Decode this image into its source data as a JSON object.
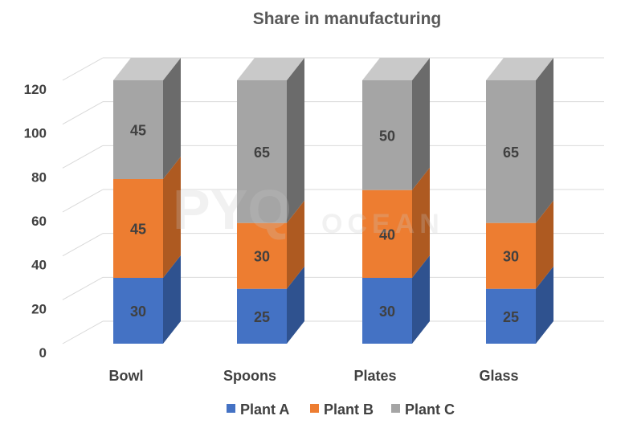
{
  "chart_data": {
    "type": "bar",
    "stacked": true,
    "three_d": true,
    "title": "Share in manufacturing",
    "categories": [
      "Bowl",
      "Spoons",
      "Plates",
      "Glass"
    ],
    "series": [
      {
        "name": "Plant A",
        "values": [
          30,
          25,
          30,
          25
        ],
        "color": "#4472c4",
        "side_color": "#2f528f"
      },
      {
        "name": "Plant B",
        "values": [
          45,
          30,
          40,
          30
        ],
        "color": "#ed7d31",
        "side_color": "#ae5a21"
      },
      {
        "name": "Plant C",
        "values": [
          45,
          65,
          50,
          65
        ],
        "color": "#a5a5a5",
        "side_color": "#6b6b6b"
      }
    ],
    "ylim": [
      0,
      120
    ],
    "yticks": [
      0,
      20,
      40,
      60,
      80,
      100,
      120
    ],
    "xlabel": "",
    "ylabel": "",
    "grid": true,
    "legend_position": "bottom"
  },
  "watermark": {
    "main": "PYQ",
    "sub": "OCEAN"
  }
}
